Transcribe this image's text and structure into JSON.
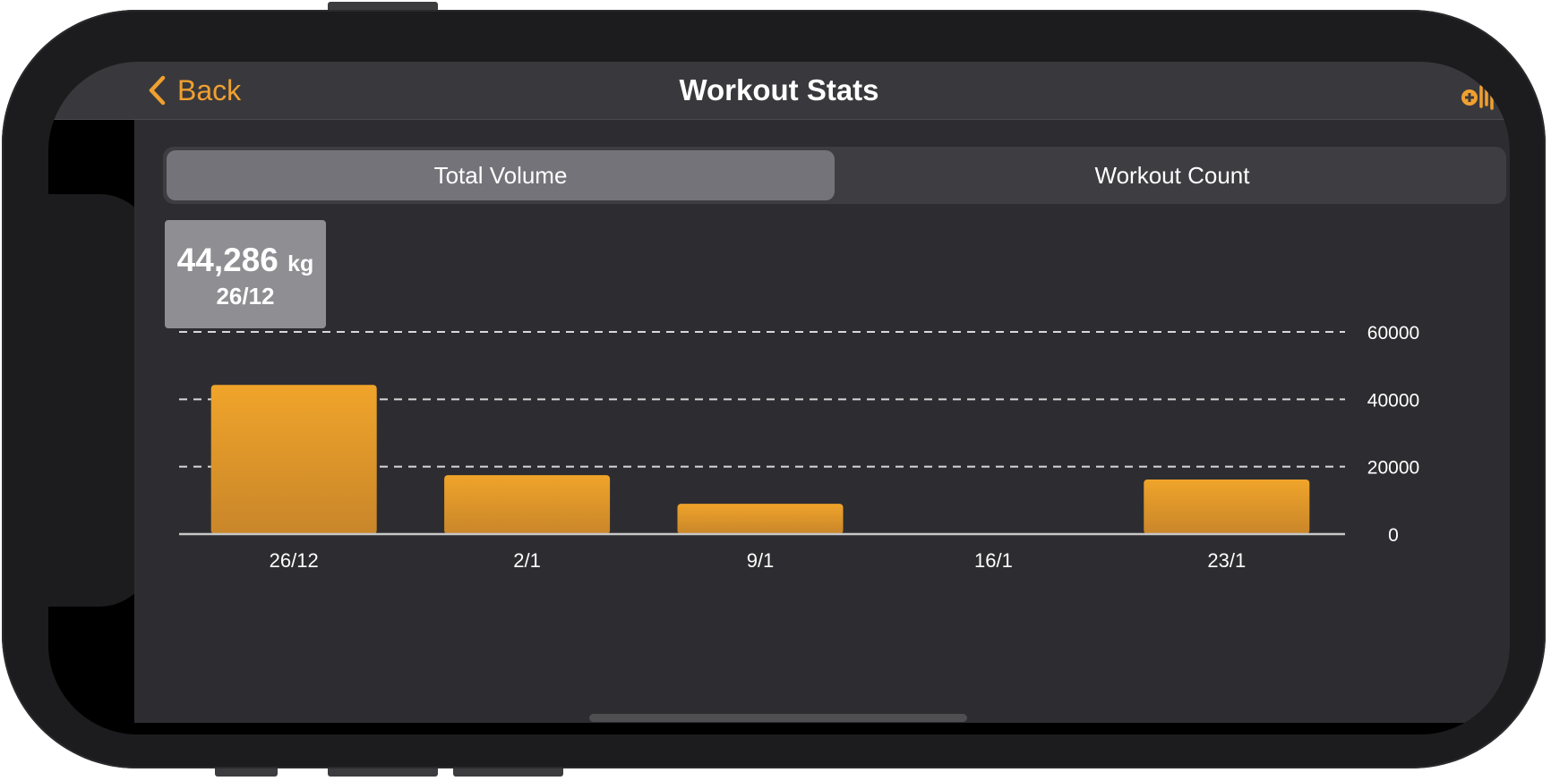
{
  "nav": {
    "back_label": "Back",
    "title": "Workout Stats",
    "back_icon": "chevron-left-icon",
    "add_icon": "add-workout-icon"
  },
  "tabs": [
    {
      "label": "Total Volume",
      "selected": true
    },
    {
      "label": "Workout Count",
      "selected": false
    }
  ],
  "tooltip": {
    "value": "44,286",
    "unit": "kg",
    "date": "26/12"
  },
  "colors": {
    "accent": "#f0a030",
    "bar_top": "#f0a42a",
    "bar_bottom": "#c9862a"
  },
  "chart_data": {
    "type": "bar",
    "categories": [
      "26/12",
      "2/1",
      "9/1",
      "16/1",
      "23/1"
    ],
    "values": [
      44286,
      17500,
      9000,
      0,
      16200
    ],
    "ylim": [
      0,
      60000
    ],
    "yticks": [
      "60000",
      "40000",
      "20000",
      "0"
    ],
    "grid": true,
    "xlabel": "",
    "ylabel": ""
  }
}
